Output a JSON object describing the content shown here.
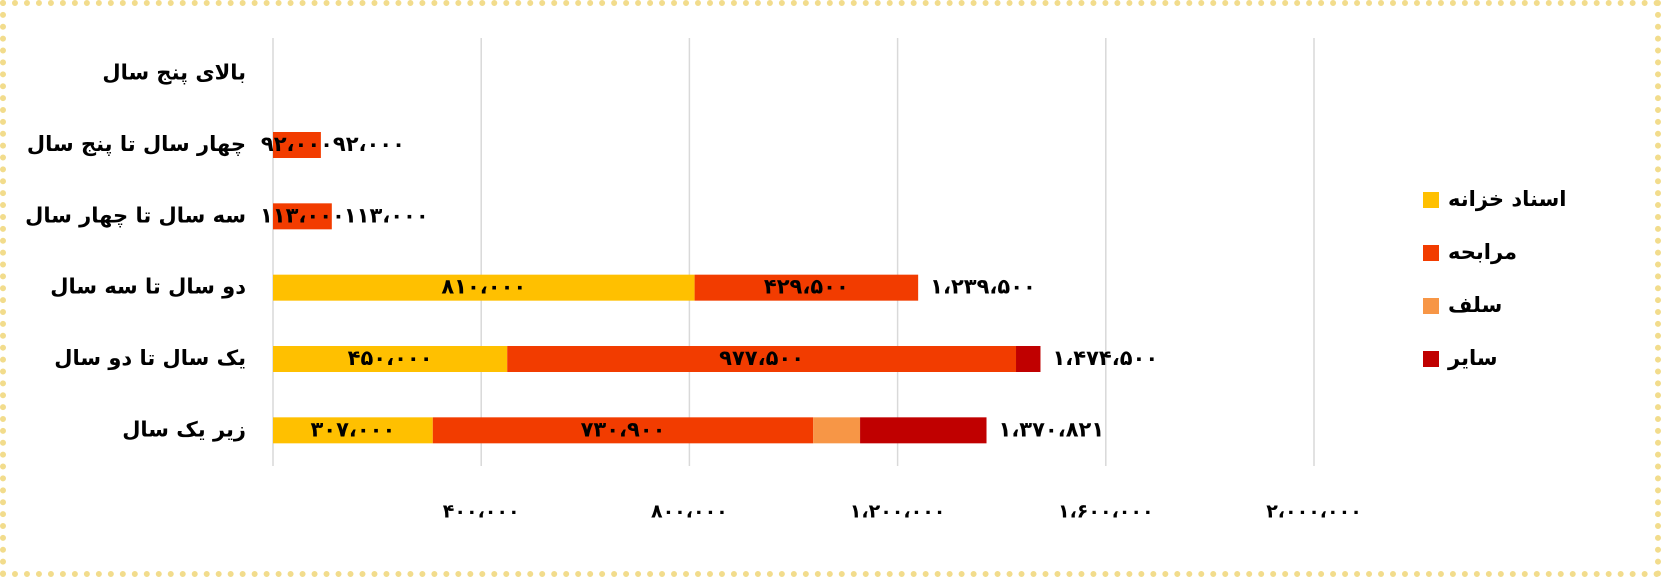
{
  "chart_data": {
    "type": "stacked_barh",
    "categories": [
      "بالای پنج سال",
      "چهار سال تا پنج سال",
      "سه سال تا چهار سال",
      "دو سال تا سه سال",
      "یک سال تا دو سال",
      "زیر یک سال"
    ],
    "series": [
      {
        "name": "اسناد خزانه",
        "color": "#ffc000",
        "values": [
          null,
          null,
          null,
          810000,
          450000,
          307000
        ],
        "value_labels": [
          null,
          null,
          null,
          "۸۱۰،۰۰۰",
          "۴۵۰،۰۰۰",
          "۳۰۷،۰۰۰"
        ]
      },
      {
        "name": "مرابحه",
        "color": "#f23c00",
        "values": [
          null,
          92000,
          113000,
          429500,
          977500,
          730900
        ],
        "value_labels": [
          null,
          "۹۲،۰۰۰",
          "۱۱۳،۰۰۰",
          "۴۲۹،۵۰۰",
          "۹۷۷،۵۰۰",
          "۷۳۰،۹۰۰"
        ]
      },
      {
        "name": "سلف",
        "color": "#f79646",
        "values": [
          null,
          null,
          null,
          null,
          null,
          90000
        ]
      },
      {
        "name": "سایر",
        "color": "#c00000",
        "values": [
          null,
          null,
          null,
          null,
          47000,
          242921
        ]
      }
    ],
    "totals": [
      null,
      92000,
      113000,
      1239500,
      1474500,
      1370821
    ],
    "total_labels": [
      null,
      "۹۲،۰۰۰",
      "۱۱۳،۰۰۰",
      "۱،۲۳۹،۵۰۰",
      "۱،۴۷۴،۵۰۰",
      "۱،۳۷۰،۸۲۱"
    ],
    "xlim": [
      0,
      2000000
    ],
    "xticks": [
      {
        "value": 400000,
        "label": "۴۰۰،۰۰۰"
      },
      {
        "value": 800000,
        "label": "۸۰۰،۰۰۰"
      },
      {
        "value": 1200000,
        "label": "۱،۲۰۰،۰۰۰"
      },
      {
        "value": 1600000,
        "label": "۱،۶۰۰،۰۰۰"
      },
      {
        "value": 2000000,
        "label": "۲،۰۰۰،۰۰۰"
      }
    ],
    "grid": true,
    "legend": "right"
  }
}
